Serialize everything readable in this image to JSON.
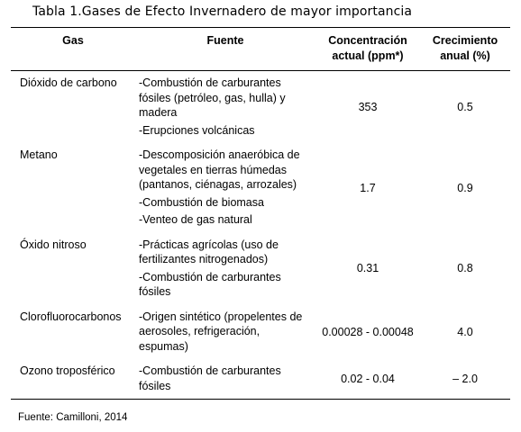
{
  "caption": "Tabla 1.Gases de Efecto Invernadero de mayor importancia",
  "headers": {
    "gas": "Gas",
    "source": "Fuente",
    "concentration": "Concentración actual (ppm*)",
    "growth": "Crecimiento anual (%)"
  },
  "rows": [
    {
      "gas": "Dióxido de carbono",
      "sources": [
        "-Combustión de carburantes fósiles (petróleo, gas, hulla) y madera",
        "-Erupciones volcánicas"
      ],
      "concentration": "353",
      "growth": "0.5"
    },
    {
      "gas": "Metano",
      "sources": [
        "-Descomposición anaeróbica de vegetales en tierras húmedas (pantanos, ciénagas, arrozales)",
        "-Combustión de biomasa",
        "-Venteo de gas natural"
      ],
      "concentration": "1.7",
      "growth": "0.9"
    },
    {
      "gas": "Óxido nitroso",
      "sources": [
        "-Prácticas agrícolas (uso de fertilizantes nitrogenados)",
        "-Combustión de carburantes fósiles"
      ],
      "concentration": "0.31",
      "growth": "0.8"
    },
    {
      "gas": "Clorofluorocarbonos",
      "sources": [
        "-Origen sintético (propelentes de aerosoles, refrigeración, espumas)"
      ],
      "concentration": "0.00028 - 0.00048",
      "growth": "4.0"
    },
    {
      "gas": "Ozono troposférico",
      "sources": [
        "-Combustión de carburantes fósiles"
      ],
      "concentration": "0.02 - 0.04",
      "growth": "– 2.0"
    }
  ],
  "footer": "Fuente: Camilloni, 2014"
}
